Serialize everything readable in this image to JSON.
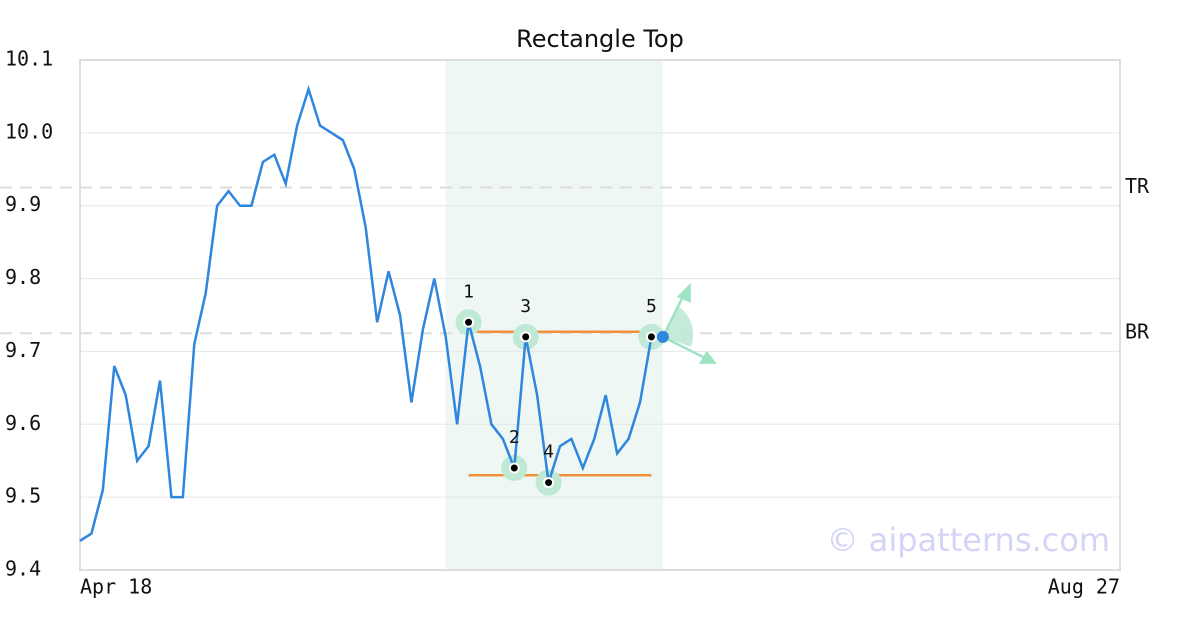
{
  "chart_data": {
    "type": "line",
    "title": "Rectangle Top",
    "x": [
      0,
      1,
      2,
      3,
      4,
      5,
      6,
      7,
      8,
      9,
      10,
      11,
      12,
      13,
      14,
      15,
      16,
      17,
      18,
      19,
      20,
      21,
      22,
      23,
      24,
      25,
      26,
      27,
      28,
      29,
      30,
      31,
      32,
      33,
      34,
      35,
      36,
      37,
      38,
      39,
      40,
      41,
      42,
      43,
      44,
      45,
      46,
      47,
      48,
      49,
      50,
      51
    ],
    "values": [
      9.44,
      9.45,
      9.51,
      9.68,
      9.64,
      9.55,
      9.57,
      9.66,
      9.5,
      9.5,
      9.71,
      9.78,
      9.9,
      9.92,
      9.9,
      9.9,
      9.96,
      9.97,
      9.93,
      10.01,
      10.06,
      10.01,
      10.0,
      9.99,
      9.95,
      9.87,
      9.74,
      9.81,
      9.75,
      9.63,
      9.73,
      9.8,
      9.72,
      9.6,
      9.74,
      9.68,
      9.6,
      9.58,
      9.54,
      9.72,
      9.64,
      9.52,
      9.57,
      9.58,
      9.54,
      9.58,
      9.64,
      9.56,
      9.58,
      9.63,
      9.72,
      9.72
    ],
    "color": "#2e86de",
    "xlim": [
      0,
      91
    ],
    "xticks": [
      {
        "value": 0,
        "label": "Apr 18"
      },
      {
        "value": 91,
        "label": "Aug 27"
      }
    ],
    "ylim": [
      9.4,
      10.1
    ],
    "yticks": [
      9.4,
      9.5,
      9.6,
      9.7,
      9.8,
      9.9,
      {
        "value": 10,
        "label": "10.0"
      },
      10.1
    ],
    "grid": true,
    "levels": [
      {
        "label": "TR",
        "value": 9.925
      },
      {
        "label": "BR",
        "value": 9.725
      }
    ],
    "pattern": {
      "region": [
        32,
        51
      ],
      "line_color": "#f0903a",
      "lines": [
        {
          "x": [
            34,
            50
          ],
          "y": 9.727
        },
        {
          "x": [
            34,
            50
          ],
          "y": 9.53
        }
      ],
      "pivots": [
        {
          "label": "1",
          "x": 34,
          "y": 9.74
        },
        {
          "label": "2",
          "x": 38,
          "y": 9.54
        },
        {
          "label": "3",
          "x": 39,
          "y": 9.72
        },
        {
          "label": "4",
          "x": 41,
          "y": 9.52
        },
        {
          "label": "5",
          "x": 50,
          "y": 9.72
        }
      ]
    },
    "watermark": "© aipatterns.com"
  }
}
